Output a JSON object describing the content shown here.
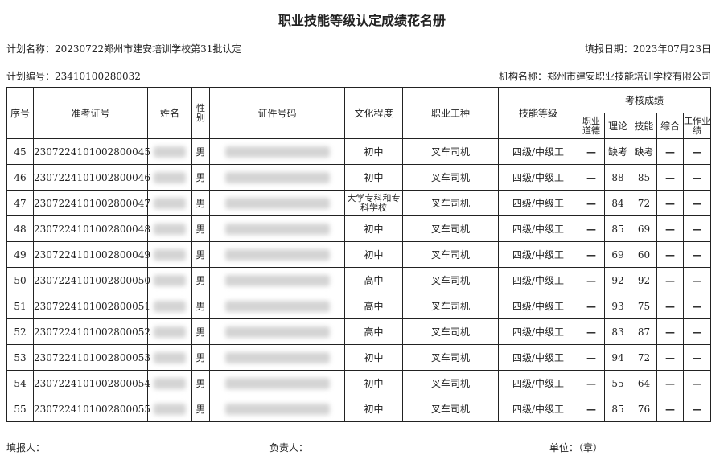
{
  "title": "职业技能等级认定成绩花名册",
  "plan_name": "计划名称：20230722郑州市建安培训学校第31批认定",
  "fill_date": "填报日期：2023年07月23日",
  "plan_no": "计划编号：23410100280032",
  "org_name": "机构名称：郑州市建安职业技能培训学校有限公司",
  "headers": {
    "seq": "序号",
    "exam_no": "准考证号",
    "name": "姓名",
    "gender": "性别",
    "id_no": "证件号码",
    "education": "文化程度",
    "occupation": "职业工种",
    "level": "技能等级",
    "scores": "考核成绩",
    "ethics": "职业道德",
    "theory": "理论",
    "skill": "技能",
    "overall": "综合",
    "performance": "工作业绩"
  },
  "rows": [
    {
      "seq": "45",
      "exam_no": "230722410100280004​5",
      "gender": "男",
      "education": "初中",
      "occupation": "叉车司机",
      "level": "四级/中级工",
      "ethics": "—",
      "theory": "缺考",
      "skill": "缺考",
      "overall": "—",
      "performance": "—"
    },
    {
      "seq": "46",
      "exam_no": "2307224101002800046",
      "gender": "男",
      "education": "初中",
      "occupation": "叉车司机",
      "level": "四级/中级工",
      "ethics": "—",
      "theory": "88",
      "skill": "85",
      "overall": "—",
      "performance": "—"
    },
    {
      "seq": "47",
      "exam_no": "2307224101002800047",
      "gender": "男",
      "education": "大学专科和专科学校",
      "occupation": "叉车司机",
      "level": "四级/中级工",
      "ethics": "—",
      "theory": "84",
      "skill": "72",
      "overall": "—",
      "performance": "—"
    },
    {
      "seq": "48",
      "exam_no": "2307224101002800048",
      "gender": "男",
      "education": "初中",
      "occupation": "叉车司机",
      "level": "四级/中级工",
      "ethics": "—",
      "theory": "85",
      "skill": "69",
      "overall": "—",
      "performance": "—"
    },
    {
      "seq": "49",
      "exam_no": "2307224101002800049",
      "gender": "男",
      "education": "初中",
      "occupation": "叉车司机",
      "level": "四级/中级工",
      "ethics": "—",
      "theory": "69",
      "skill": "60",
      "overall": "—",
      "performance": "—"
    },
    {
      "seq": "50",
      "exam_no": "2307224101002800050",
      "gender": "男",
      "education": "高中",
      "occupation": "叉车司机",
      "level": "四级/中级工",
      "ethics": "—",
      "theory": "92",
      "skill": "92",
      "overall": "—",
      "performance": "—"
    },
    {
      "seq": "51",
      "exam_no": "2307224101002800051",
      "gender": "男",
      "education": "高中",
      "occupation": "叉车司机",
      "level": "四级/中级工",
      "ethics": "—",
      "theory": "93",
      "skill": "75",
      "overall": "—",
      "performance": "—"
    },
    {
      "seq": "52",
      "exam_no": "2307224101002800052",
      "gender": "男",
      "education": "高中",
      "occupation": "叉车司机",
      "level": "四级/中级工",
      "ethics": "—",
      "theory": "83",
      "skill": "87",
      "overall": "—",
      "performance": "—"
    },
    {
      "seq": "53",
      "exam_no": "2307224101002800053",
      "gender": "男",
      "education": "初中",
      "occupation": "叉车司机",
      "level": "四级/中级工",
      "ethics": "—",
      "theory": "94",
      "skill": "72",
      "overall": "—",
      "performance": "—"
    },
    {
      "seq": "54",
      "exam_no": "2307224101002800054",
      "gender": "男",
      "education": "初中",
      "occupation": "叉车司机",
      "level": "四级/中级工",
      "ethics": "—",
      "theory": "55",
      "skill": "64",
      "overall": "—",
      "performance": "—"
    },
    {
      "seq": "55",
      "exam_no": "2307224101002800055",
      "gender": "男",
      "education": "初中",
      "occupation": "叉车司机",
      "level": "四级/中级工",
      "ethics": "—",
      "theory": "85",
      "skill": "76",
      "overall": "—",
      "performance": "—"
    }
  ],
  "footer": {
    "filler": "填报人：",
    "responsible": "负责人：",
    "unit": "单位：（章）"
  }
}
